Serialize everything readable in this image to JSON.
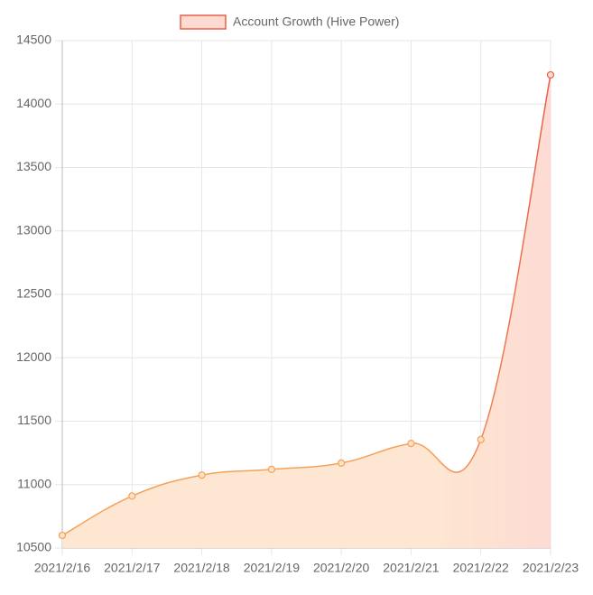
{
  "chart_data": {
    "type": "line",
    "categories": [
      "2021/2/16",
      "2021/2/17",
      "2021/2/18",
      "2021/2/19",
      "2021/2/20",
      "2021/2/21",
      "2021/2/22",
      "2021/2/23"
    ],
    "series": [
      {
        "name": "Account Growth (Hive Power)",
        "color": "#f4a259",
        "values": [
          10600,
          10910,
          11075,
          11120,
          11170,
          11325,
          11355,
          14230
        ]
      }
    ],
    "ylim": [
      10500,
      14500
    ],
    "yticks": [
      10500,
      11000,
      11500,
      12000,
      12500,
      13000,
      13500,
      14000,
      14500
    ],
    "grid": true,
    "legend": "top"
  }
}
